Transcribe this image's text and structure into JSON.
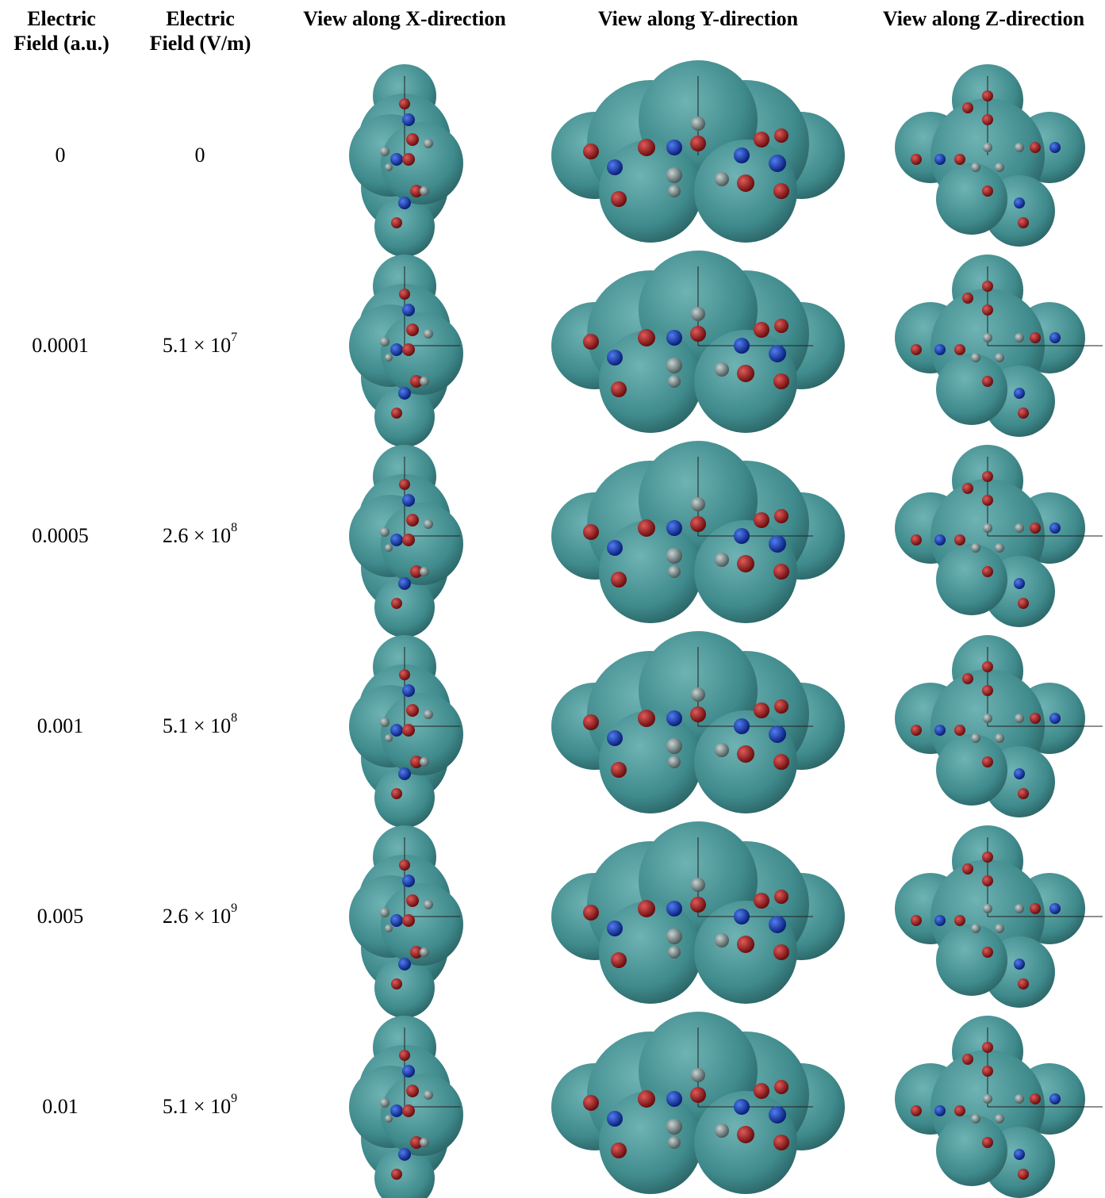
{
  "header": {
    "field_au": "Electric Field (a.u.)",
    "field_vm": "Electric Field (V/m)",
    "view_x": "View along X-direction",
    "view_y": "View along Y-direction",
    "view_z": "View along Z-direction"
  },
  "rows": [
    {
      "field_au": "0",
      "field_vm": {
        "base": "0"
      }
    },
    {
      "field_au": "0.0001",
      "field_vm": {
        "base": "5.1 × 10",
        "exp": "7"
      }
    },
    {
      "field_au": "0.0005",
      "field_vm": {
        "base": "2.6 × 10",
        "exp": "8"
      }
    },
    {
      "field_au": "0.001",
      "field_vm": {
        "base": "5.1 × 10",
        "exp": "8"
      }
    },
    {
      "field_au": "0.005",
      "field_vm": {
        "base": "2.6 × 10",
        "exp": "9"
      }
    },
    {
      "field_au": "0.01",
      "field_vm": {
        "base": "5.1 × 10",
        "exp": "9"
      }
    }
  ]
}
